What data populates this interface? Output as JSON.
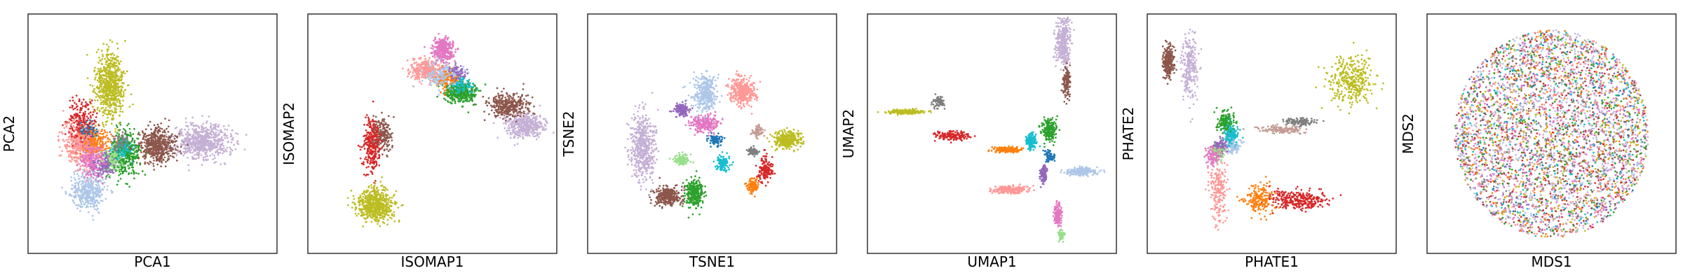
{
  "figure": {
    "background": "#ffffff"
  },
  "palette": [
    "#1f77b4",
    "#aec7e8",
    "#ff7f0e",
    "#2ca02c",
    "#d62728",
    "#9467bd",
    "#8c564b",
    "#e377c2",
    "#7f7f7f",
    "#bcbd22",
    "#17becf",
    "#ff9896",
    "#c5b0d5",
    "#98df8a",
    "#ffbb78",
    "#f7b6d2",
    "#c49c94",
    "#dbdb8d"
  ],
  "chart_data": [
    {
      "type": "scatter",
      "title": "",
      "xlabel": "PCA1",
      "ylabel": "PCA2",
      "xlim": [
        -6,
        8
      ],
      "ylim": [
        -6,
        6
      ],
      "ticks": false,
      "grid": false,
      "clusters": [
        {
          "color": "#bcbd22",
          "center": [
            -1.4,
            2.4
          ],
          "spread": [
            0.8,
            1.6
          ],
          "count": 700
        },
        {
          "color": "#c5b0d5",
          "center": [
            3.8,
            -0.4
          ],
          "spread": [
            1.6,
            0.8
          ],
          "count": 650
        },
        {
          "color": "#8c564b",
          "center": [
            1.3,
            -0.6
          ],
          "spread": [
            1.0,
            0.9
          ],
          "count": 500
        },
        {
          "color": "#aec7e8",
          "center": [
            -2.6,
            -2.9
          ],
          "spread": [
            0.9,
            0.9
          ],
          "count": 400
        },
        {
          "color": "#ff9896",
          "center": [
            -3.1,
            -0.5
          ],
          "spread": [
            0.9,
            1.2
          ],
          "count": 400
        },
        {
          "color": "#e377c2",
          "center": [
            -2.4,
            -1.2
          ],
          "spread": [
            0.7,
            1.0
          ],
          "count": 300
        },
        {
          "color": "#2ca02c",
          "center": [
            -0.5,
            -1.0
          ],
          "spread": [
            0.8,
            1.2
          ],
          "count": 350
        },
        {
          "color": "#d62728",
          "center": [
            -3.0,
            0.5
          ],
          "spread": [
            0.8,
            1.2
          ],
          "count": 250
        },
        {
          "color": "#17becf",
          "center": [
            -0.7,
            -0.8
          ],
          "spread": [
            0.5,
            0.5
          ],
          "count": 150
        },
        {
          "color": "#ff7f0e",
          "center": [
            -2.2,
            -0.4
          ],
          "spread": [
            0.8,
            0.7
          ],
          "count": 220
        },
        {
          "color": "#9467bd",
          "center": [
            -1.7,
            -1.6
          ],
          "spread": [
            0.6,
            0.6
          ],
          "count": 150
        },
        {
          "color": "#98df8a",
          "center": [
            -1.2,
            -1.3
          ],
          "spread": [
            0.6,
            0.6
          ],
          "count": 150
        },
        {
          "color": "#7f7f7f",
          "center": [
            -0.8,
            -0.4
          ],
          "spread": [
            0.5,
            0.5
          ],
          "count": 100
        },
        {
          "color": "#1f77b4",
          "center": [
            -2.6,
            0.1
          ],
          "spread": [
            0.5,
            0.5
          ],
          "count": 100
        }
      ]
    },
    {
      "type": "scatter",
      "title": "",
      "xlabel": "ISOMAP1",
      "ylabel": "ISOMAP2",
      "xlim": [
        -6,
        8
      ],
      "ylim": [
        -6,
        6
      ],
      "ticks": false,
      "grid": false,
      "clusters": [
        {
          "color": "#bcbd22",
          "center": [
            -2.2,
            -3.6
          ],
          "spread": [
            1.0,
            0.8
          ],
          "count": 650
        },
        {
          "color": "#d62728",
          "center": [
            -2.4,
            -0.6
          ],
          "spread": [
            0.5,
            1.3
          ],
          "count": 300
        },
        {
          "color": "#8c564b",
          "center": [
            -1.8,
            0.0
          ],
          "spread": [
            0.5,
            0.8
          ],
          "count": 180
        },
        {
          "color": "#ff9896",
          "center": [
            0.6,
            3.2
          ],
          "spread": [
            0.9,
            0.5
          ],
          "count": 300
        },
        {
          "color": "#e377c2",
          "center": [
            1.6,
            4.2
          ],
          "spread": [
            0.6,
            0.6
          ],
          "count": 300
        },
        {
          "color": "#aec7e8",
          "center": [
            1.5,
            2.9
          ],
          "spread": [
            1.0,
            0.6
          ],
          "count": 250
        },
        {
          "color": "#2ca02c",
          "center": [
            2.6,
            2.0
          ],
          "spread": [
            0.9,
            0.5
          ],
          "count": 300
        },
        {
          "color": "#8c564b",
          "center": [
            5.3,
            1.4
          ],
          "spread": [
            1.2,
            0.6
          ],
          "count": 350
        },
        {
          "color": "#c5b0d5",
          "center": [
            6.2,
            0.4
          ],
          "spread": [
            1.1,
            0.6
          ],
          "count": 400
        },
        {
          "color": "#ff7f0e",
          "center": [
            1.9,
            2.7
          ],
          "spread": [
            0.7,
            0.5
          ],
          "count": 150
        },
        {
          "color": "#17becf",
          "center": [
            2.6,
            2.4
          ],
          "spread": [
            0.6,
            0.4
          ],
          "count": 150
        },
        {
          "color": "#9467bd",
          "center": [
            2.4,
            3.0
          ],
          "spread": [
            0.5,
            0.4
          ],
          "count": 100
        }
      ]
    },
    {
      "type": "scatter",
      "title": "",
      "xlabel": "TSNE1",
      "ylabel": "TSNE2",
      "xlim": [
        -6,
        8
      ],
      "ylim": [
        -6,
        6
      ],
      "ticks": false,
      "grid": false,
      "clusters": [
        {
          "color": "#c5b0d5",
          "center": [
            -2.9,
            -0.6
          ],
          "spread": [
            0.7,
            1.6
          ],
          "count": 550
        },
        {
          "color": "#8c564b",
          "center": [
            -1.5,
            -3.1
          ],
          "spread": [
            0.8,
            0.5
          ],
          "count": 300
        },
        {
          "color": "#2ca02c",
          "center": [
            0.0,
            -3.0
          ],
          "spread": [
            0.5,
            0.7
          ],
          "count": 300
        },
        {
          "color": "#aec7e8",
          "center": [
            0.6,
            2.0
          ],
          "spread": [
            0.7,
            0.9
          ],
          "count": 350
        },
        {
          "color": "#ff9896",
          "center": [
            2.7,
            2.1
          ],
          "spread": [
            0.7,
            0.7
          ],
          "count": 350
        },
        {
          "color": "#e377c2",
          "center": [
            0.6,
            0.5
          ],
          "spread": [
            0.7,
            0.4
          ],
          "count": 250
        },
        {
          "color": "#9467bd",
          "center": [
            -0.7,
            1.2
          ],
          "spread": [
            0.4,
            0.3
          ],
          "count": 150
        },
        {
          "color": "#bcbd22",
          "center": [
            5.2,
            -0.3
          ],
          "spread": [
            0.8,
            0.4
          ],
          "count": 300
        },
        {
          "color": "#d62728",
          "center": [
            4.0,
            -1.8
          ],
          "spread": [
            0.4,
            0.6
          ],
          "count": 150
        },
        {
          "color": "#ff7f0e",
          "center": [
            3.3,
            -2.6
          ],
          "spread": [
            0.3,
            0.4
          ],
          "count": 120
        },
        {
          "color": "#17becf",
          "center": [
            1.6,
            -1.5
          ],
          "spread": [
            0.4,
            0.4
          ],
          "count": 120
        },
        {
          "color": "#98df8a",
          "center": [
            -0.7,
            -1.3
          ],
          "spread": [
            0.4,
            0.3
          ],
          "count": 120
        },
        {
          "color": "#7f7f7f",
          "center": [
            3.3,
            -0.9
          ],
          "spread": [
            0.3,
            0.2
          ],
          "count": 80
        },
        {
          "color": "#c49c94",
          "center": [
            3.6,
            0.1
          ],
          "spread": [
            0.3,
            0.3
          ],
          "count": 80
        },
        {
          "color": "#1f77b4",
          "center": [
            1.2,
            -0.3
          ],
          "spread": [
            0.4,
            0.3
          ],
          "count": 80
        }
      ]
    },
    {
      "type": "scatter",
      "title": "",
      "xlabel": "UMAP1",
      "ylabel": "UMAP2",
      "xlim": [
        -6,
        8
      ],
      "ylim": [
        -6,
        6
      ],
      "ticks": false,
      "grid": false,
      "clusters": [
        {
          "color": "#bcbd22",
          "center": [
            -3.8,
            1.1
          ],
          "spread": [
            1.0,
            0.1
          ],
          "count": 220
        },
        {
          "color": "#7f7f7f",
          "center": [
            -2.0,
            1.6
          ],
          "spread": [
            0.3,
            0.3
          ],
          "count": 80
        },
        {
          "color": "#d62728",
          "center": [
            -1.2,
            -0.1
          ],
          "spread": [
            1.0,
            0.25
          ],
          "count": 150
        },
        {
          "color": "#ff7f0e",
          "center": [
            1.8,
            -0.8
          ],
          "spread": [
            0.8,
            0.15
          ],
          "count": 150
        },
        {
          "color": "#17becf",
          "center": [
            3.2,
            -0.4
          ],
          "spread": [
            0.3,
            0.4
          ],
          "count": 150
        },
        {
          "color": "#2ca02c",
          "center": [
            4.2,
            0.2
          ],
          "spread": [
            0.4,
            0.6
          ],
          "count": 200
        },
        {
          "color": "#8c564b",
          "center": [
            5.2,
            2.6
          ],
          "spread": [
            0.2,
            0.8
          ],
          "count": 150
        },
        {
          "color": "#c5b0d5",
          "center": [
            5.0,
            4.6
          ],
          "spread": [
            0.4,
            1.2
          ],
          "count": 350
        },
        {
          "color": "#9467bd",
          "center": [
            3.9,
            -2.0
          ],
          "spread": [
            0.2,
            0.4
          ],
          "count": 120
        },
        {
          "color": "#ff9896",
          "center": [
            2.0,
            -2.8
          ],
          "spread": [
            1.0,
            0.2
          ],
          "count": 200
        },
        {
          "color": "#aec7e8",
          "center": [
            6.0,
            -1.9
          ],
          "spread": [
            0.8,
            0.2
          ],
          "count": 200
        },
        {
          "color": "#e377c2",
          "center": [
            4.7,
            -4.0
          ],
          "spread": [
            0.2,
            0.6
          ],
          "count": 150
        },
        {
          "color": "#98df8a",
          "center": [
            4.9,
            -5.1
          ],
          "spread": [
            0.15,
            0.3
          ],
          "count": 60
        },
        {
          "color": "#1f77b4",
          "center": [
            4.2,
            -1.1
          ],
          "spread": [
            0.3,
            0.3
          ],
          "count": 80
        }
      ]
    },
    {
      "type": "scatter",
      "title": "",
      "xlabel": "PHATE1",
      "ylabel": "PHATE2",
      "xlim": [
        -6,
        8
      ],
      "ylim": [
        -6,
        6
      ],
      "ticks": false,
      "grid": false,
      "clusters": [
        {
          "color": "#8c564b",
          "center": [
            -4.8,
            3.6
          ],
          "spread": [
            0.3,
            0.8
          ],
          "count": 250
        },
        {
          "color": "#c5b0d5",
          "center": [
            -3.6,
            3.3
          ],
          "spread": [
            0.5,
            1.6
          ],
          "count": 250
        },
        {
          "color": "#bcbd22",
          "center": [
            5.5,
            2.6
          ],
          "spread": [
            1.2,
            1.2
          ],
          "count": 350
        },
        {
          "color": "#d62728",
          "center": [
            2.5,
            -3.3
          ],
          "spread": [
            1.6,
            0.5
          ],
          "count": 300
        },
        {
          "color": "#ff9896",
          "center": [
            -2.0,
            -2.8
          ],
          "spread": [
            0.5,
            1.6
          ],
          "count": 200
        },
        {
          "color": "#ff7f0e",
          "center": [
            0.3,
            -3.3
          ],
          "spread": [
            0.8,
            0.7
          ],
          "count": 200
        },
        {
          "color": "#2ca02c",
          "center": [
            -1.6,
            0.6
          ],
          "spread": [
            0.5,
            0.5
          ],
          "count": 150
        },
        {
          "color": "#17becf",
          "center": [
            -1.3,
            -0.1
          ],
          "spread": [
            0.4,
            0.5
          ],
          "count": 150
        },
        {
          "color": "#7f7f7f",
          "center": [
            2.6,
            0.6
          ],
          "spread": [
            1.0,
            0.2
          ],
          "count": 120
        },
        {
          "color": "#c49c94",
          "center": [
            1.6,
            0.2
          ],
          "spread": [
            1.2,
            0.2
          ],
          "count": 150
        },
        {
          "color": "#e377c2",
          "center": [
            -2.3,
            -1.1
          ],
          "spread": [
            0.4,
            0.5
          ],
          "count": 120
        },
        {
          "color": "#9467bd",
          "center": [
            -1.9,
            -0.6
          ],
          "spread": [
            0.4,
            0.4
          ],
          "count": 100
        },
        {
          "color": "#aec7e8",
          "center": [
            -1.2,
            -0.6
          ],
          "spread": [
            0.4,
            0.4
          ],
          "count": 100
        },
        {
          "color": "#98df8a",
          "center": [
            -2.0,
            -0.9
          ],
          "spread": [
            0.4,
            0.4
          ],
          "count": 100
        }
      ]
    },
    {
      "type": "scatter",
      "title": "",
      "xlabel": "MDS1",
      "ylabel": "MDS2",
      "xlim": [
        -6,
        8
      ],
      "ylim": [
        -6,
        6
      ],
      "ticks": false,
      "grid": false,
      "shape": "disc",
      "clusters": [
        {
          "color": "#c5b0d5",
          "center": [
            1.0,
            0.0
          ],
          "spread": [
            5.2,
            5.2
          ],
          "count": 700
        },
        {
          "color": "#e377c2",
          "center": [
            1.0,
            0.0
          ],
          "spread": [
            5.2,
            5.2
          ],
          "count": 500
        },
        {
          "color": "#aec7e8",
          "center": [
            1.0,
            0.0
          ],
          "spread": [
            5.2,
            5.2
          ],
          "count": 450
        },
        {
          "color": "#ff9896",
          "center": [
            1.0,
            0.0
          ],
          "spread": [
            5.2,
            5.2
          ],
          "count": 400
        },
        {
          "color": "#8c564b",
          "center": [
            1.0,
            0.0
          ],
          "spread": [
            5.2,
            5.2
          ],
          "count": 400
        },
        {
          "color": "#2ca02c",
          "center": [
            1.0,
            0.0
          ],
          "spread": [
            5.2,
            5.2
          ],
          "count": 350
        },
        {
          "color": "#bcbd22",
          "center": [
            1.0,
            0.0
          ],
          "spread": [
            5.2,
            5.2
          ],
          "count": 400
        },
        {
          "color": "#d62728",
          "center": [
            1.0,
            0.0
          ],
          "spread": [
            5.2,
            5.2
          ],
          "count": 300
        },
        {
          "color": "#ff7f0e",
          "center": [
            1.0,
            0.0
          ],
          "spread": [
            5.2,
            5.2
          ],
          "count": 300
        },
        {
          "color": "#17becf",
          "center": [
            1.0,
            0.0
          ],
          "spread": [
            5.2,
            5.2
          ],
          "count": 250
        },
        {
          "color": "#9467bd",
          "center": [
            1.0,
            0.0
          ],
          "spread": [
            5.2,
            5.2
          ],
          "count": 200
        },
        {
          "color": "#7f7f7f",
          "center": [
            1.0,
            0.0
          ],
          "spread": [
            5.2,
            5.2
          ],
          "count": 150
        },
        {
          "color": "#1f77b4",
          "center": [
            1.0,
            0.0
          ],
          "spread": [
            5.2,
            5.2
          ],
          "count": 150
        }
      ]
    }
  ]
}
